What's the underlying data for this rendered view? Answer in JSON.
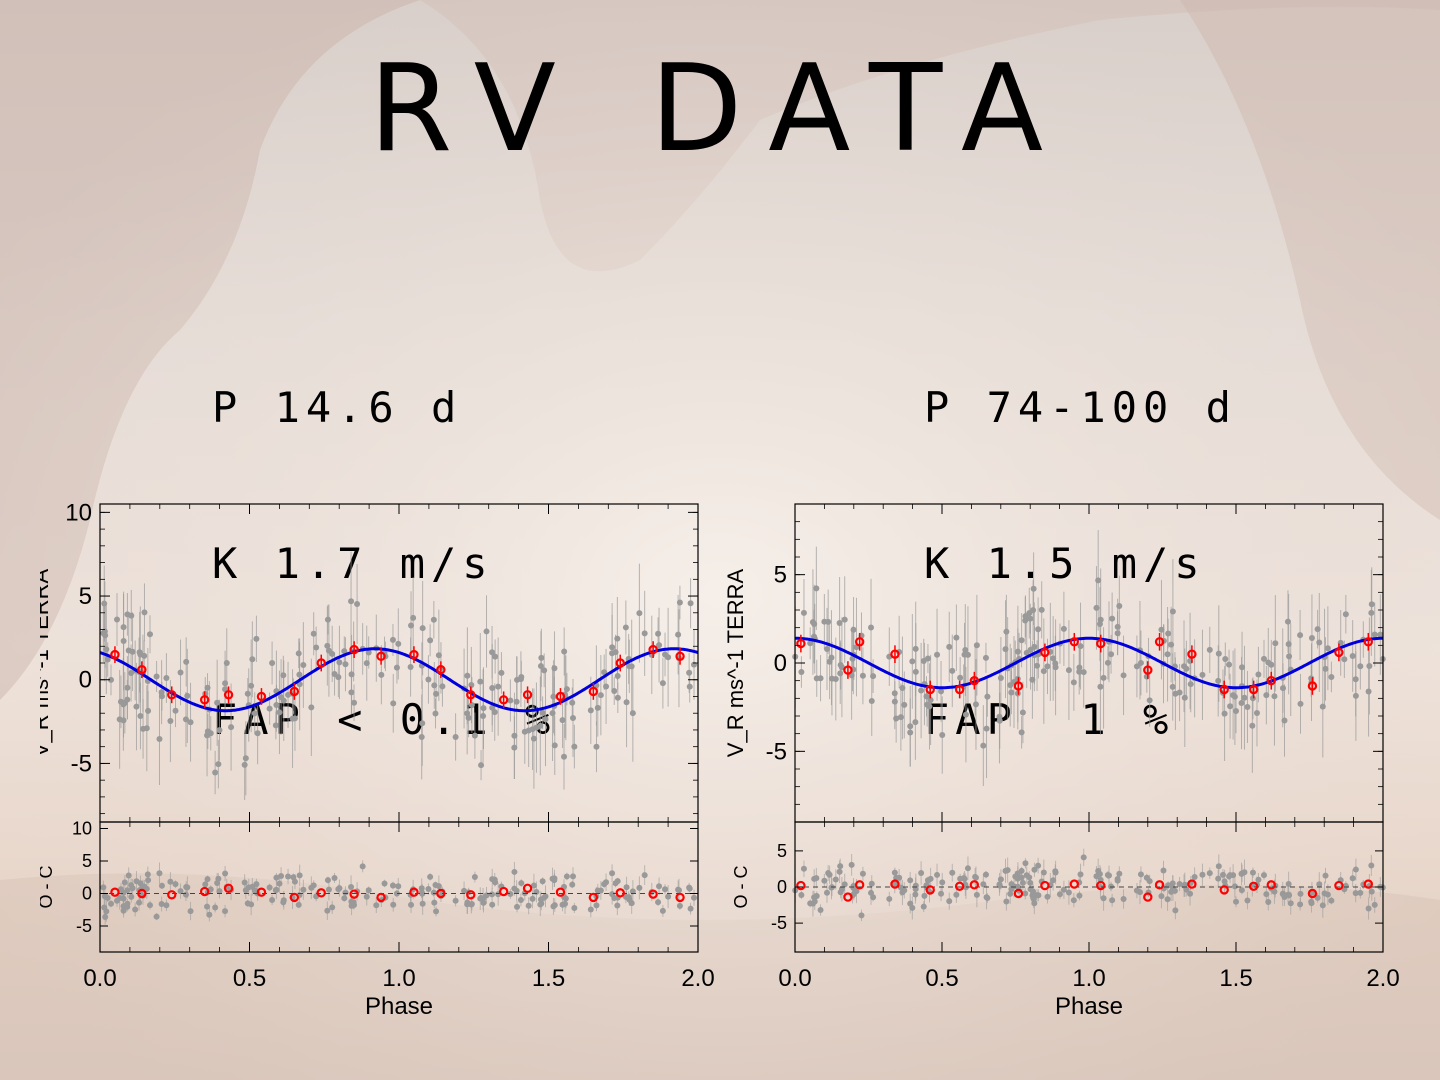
{
  "slide": {
    "title": "RV DATA",
    "left_params": [
      "P 14.6 d",
      "K 1.7 m/s",
      "FAP < 0.1 %"
    ],
    "right_params": [
      "P 74-100 d",
      "K 1.5 m/s",
      "FAP  1 %"
    ]
  },
  "colors": {
    "fit": "#0000dd",
    "binned": "#ff0000",
    "raw": "#999999"
  },
  "chart_data": [
    {
      "type": "scatter",
      "title": "",
      "xlabel": "Phase",
      "ylabel": "V_R ms^-1 TERRA",
      "residual_ylabel": "O - C",
      "xlim": [
        0.0,
        2.0
      ],
      "ylim": [
        -8.5,
        10.5
      ],
      "residual_ylim": [
        -9,
        11
      ],
      "xticks": [
        "0.0",
        "0.5",
        "1.0",
        "1.5",
        "2.0"
      ],
      "yticks": [
        "10",
        "5",
        "0",
        "-5"
      ],
      "residual_yticks": [
        "10",
        "5",
        "0",
        "-5"
      ],
      "fit": {
        "amplitude": 1.85,
        "phase_of_max": 0.92,
        "cycles_per_unit": 1
      },
      "binned": {
        "x": [
          0.05,
          0.14,
          0.24,
          0.35,
          0.43,
          0.54,
          0.65,
          0.74,
          0.85,
          0.94,
          1.05,
          1.14,
          1.24,
          1.35,
          1.43,
          1.54,
          1.65,
          1.74,
          1.85,
          1.94
        ],
        "y": [
          1.5,
          0.6,
          -0.9,
          -1.2,
          -0.9,
          -1.0,
          -0.7,
          1.0,
          1.8,
          1.4,
          1.5,
          0.6,
          -0.9,
          -1.2,
          -0.9,
          -1.0,
          -0.7,
          1.0,
          1.8,
          1.4
        ],
        "residual": [
          0.2,
          0.0,
          -0.2,
          0.3,
          0.8,
          0.2,
          -0.6,
          0.1,
          -0.1,
          -0.6,
          0.2,
          0.0,
          -0.2,
          0.3,
          0.8,
          0.2,
          -0.6,
          0.1,
          -0.1,
          -0.6
        ]
      }
    },
    {
      "type": "scatter",
      "title": "",
      "xlabel": "Phase",
      "ylabel": "V_R ms^-1 TERRA",
      "residual_ylabel": "O - C",
      "xlim": [
        0.0,
        2.0
      ],
      "ylim": [
        -9,
        9
      ],
      "residual_ylim": [
        -9,
        9
      ],
      "xticks": [
        "0.0",
        "0.5",
        "1.0",
        "1.5",
        "2.0"
      ],
      "yticks": [
        "5",
        "0",
        "-5"
      ],
      "residual_yticks": [
        "5",
        "0",
        "-5"
      ],
      "fit": {
        "amplitude": 1.4,
        "phase_of_max": 0.0,
        "cycles_per_unit": 1
      },
      "binned": {
        "x": [
          0.02,
          0.18,
          0.22,
          0.34,
          0.46,
          0.56,
          0.61,
          0.76,
          0.85,
          0.95,
          1.04,
          1.2,
          1.24,
          1.35,
          1.46,
          1.56,
          1.62,
          1.76,
          1.85,
          1.95
        ],
        "y": [
          1.1,
          -0.4,
          1.2,
          0.5,
          -1.5,
          -1.5,
          -1.0,
          -1.3,
          0.6,
          1.2,
          1.1,
          -0.4,
          1.2,
          0.5,
          -1.5,
          -1.5,
          -1.0,
          -1.3,
          0.6,
          1.2
        ],
        "residual": [
          0.2,
          -1.4,
          0.3,
          0.4,
          -0.4,
          0.1,
          0.3,
          -0.9,
          0.2,
          0.4,
          0.2,
          -1.4,
          0.3,
          0.4,
          -0.4,
          0.1,
          0.3,
          -0.9,
          0.2,
          0.4
        ]
      }
    }
  ]
}
